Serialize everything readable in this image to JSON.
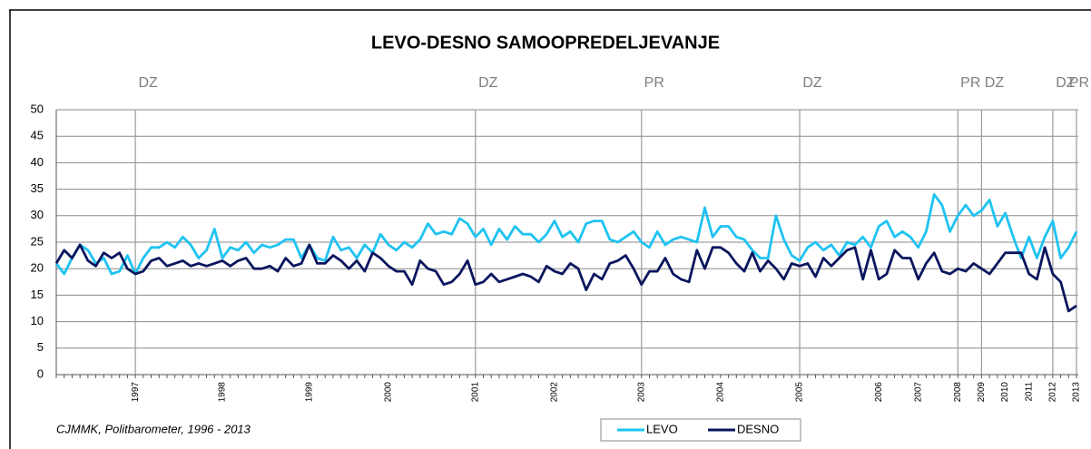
{
  "chart_data": {
    "type": "line",
    "title": "LEVO-DESNO SAMOOPREDELJEVANJE",
    "source": "CJMMK, Politbarometer, 1996 - 2013",
    "ylim": [
      0,
      50
    ],
    "yticks": [
      0,
      5,
      10,
      15,
      20,
      25,
      30,
      35,
      40,
      45,
      50
    ],
    "grid": true,
    "legend": "bottom",
    "categories": [
      null,
      null,
      null,
      null,
      null,
      null,
      null,
      null,
      null,
      null,
      "1997",
      null,
      null,
      null,
      null,
      null,
      null,
      null,
      null,
      null,
      null,
      "1998",
      null,
      null,
      null,
      null,
      null,
      null,
      null,
      null,
      null,
      null,
      "1999",
      null,
      null,
      null,
      null,
      null,
      null,
      null,
      null,
      null,
      "2000",
      null,
      null,
      null,
      null,
      null,
      null,
      null,
      null,
      null,
      null,
      "2001",
      null,
      null,
      null,
      null,
      null,
      null,
      null,
      null,
      null,
      "2002",
      null,
      null,
      null,
      null,
      null,
      null,
      null,
      null,
      null,
      null,
      "2003",
      null,
      null,
      null,
      null,
      null,
      null,
      null,
      null,
      null,
      "2004",
      null,
      null,
      null,
      null,
      null,
      null,
      null,
      null,
      null,
      "2005",
      null,
      null,
      null,
      null,
      null,
      null,
      null,
      null,
      null,
      "2006",
      null,
      null,
      null,
      null,
      "2007",
      null,
      null,
      null,
      null,
      "2008",
      null,
      null,
      "2009",
      null,
      null,
      "2010",
      null,
      null,
      "2011",
      null,
      null,
      "2012",
      null,
      null,
      "2013"
    ],
    "events": [
      {
        "label": "DZ",
        "category": "1997"
      },
      {
        "label": "DZ",
        "category": "2001"
      },
      {
        "label": "PR",
        "category": "2003"
      },
      {
        "label": "DZ",
        "category": "2005"
      },
      {
        "label": "PR",
        "category": "2008"
      },
      {
        "label": "DZ",
        "category": "2009"
      },
      {
        "label": "DZ",
        "category": "2012"
      },
      {
        "label": "PR",
        "category": "2013"
      }
    ],
    "series": [
      {
        "name": "LEVO",
        "color": "#1ec3f2",
        "values": [
          21,
          19,
          22,
          24.5,
          23.5,
          21,
          22,
          19,
          19.5,
          22.5,
          19,
          22,
          24,
          24,
          25,
          24,
          26,
          24.5,
          22,
          23.5,
          27.5,
          22,
          24,
          23.5,
          25,
          23,
          24.5,
          24,
          24.5,
          25.5,
          25.5,
          22,
          24.5,
          22,
          21.5,
          26,
          23.5,
          24,
          22,
          24.5,
          23,
          26.5,
          24.5,
          23.5,
          25,
          24,
          25.5,
          28.5,
          26.5,
          27,
          26.5,
          29.5,
          28.5,
          26,
          27.5,
          24.5,
          27.5,
          25.5,
          28,
          26.5,
          26.5,
          25,
          26.5,
          29,
          26,
          27,
          25,
          28.5,
          29,
          29,
          25.5,
          25,
          26,
          27,
          25,
          24,
          27,
          24.5,
          25.5,
          26,
          25.5,
          25,
          31.5,
          26,
          28,
          28,
          26,
          25.5,
          23.5,
          22,
          22,
          30,
          25.5,
          22.5,
          21.5,
          24,
          25,
          23.5,
          24.5,
          22.5,
          25,
          24.5,
          26,
          24,
          28,
          29,
          26,
          27,
          26,
          24,
          27,
          34,
          32,
          27,
          30,
          32,
          30,
          31,
          33,
          28,
          30.5,
          26,
          22,
          26,
          22,
          26,
          29,
          22,
          24,
          27
        ]
      },
      {
        "name": "DESNO",
        "color": "#0b165e",
        "values": [
          21,
          23.5,
          22,
          24.5,
          21.5,
          20.5,
          23,
          22,
          23,
          20,
          19,
          19.5,
          21.5,
          22,
          20.5,
          21,
          21.5,
          20.5,
          21,
          20.5,
          21,
          21.5,
          20.5,
          21.5,
          22,
          20,
          20,
          20.5,
          19.5,
          22,
          20.5,
          21,
          24.5,
          21,
          21,
          22.5,
          21.5,
          20,
          21.5,
          19.5,
          23,
          22,
          20.5,
          19.5,
          19.5,
          17,
          21.5,
          20,
          19.5,
          17,
          17.5,
          19,
          21.5,
          17,
          17.5,
          19,
          17.5,
          18,
          18.5,
          19,
          18.5,
          17.5,
          20.5,
          19.5,
          19,
          21,
          20,
          16,
          19,
          18,
          21,
          21.5,
          22.5,
          20,
          17,
          19.5,
          19.5,
          22,
          19,
          18,
          17.5,
          23.5,
          20,
          24,
          24,
          23,
          21,
          19.5,
          23,
          19.5,
          21.5,
          20,
          18,
          21,
          20.5,
          21,
          18.5,
          22,
          20.5,
          22,
          23.5,
          24,
          18,
          23.5,
          18,
          19,
          23.5,
          22,
          22,
          18,
          21,
          23,
          19.5,
          19,
          20,
          19.5,
          21,
          20,
          19,
          21,
          23,
          23,
          23,
          19,
          18,
          24,
          19,
          17.5,
          12,
          13
        ]
      }
    ]
  }
}
